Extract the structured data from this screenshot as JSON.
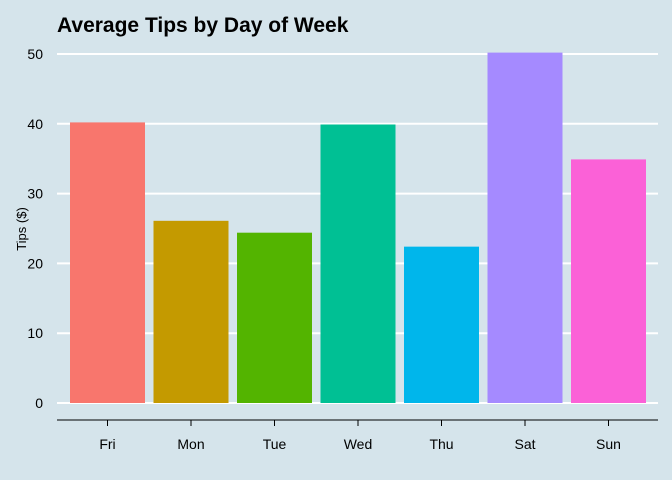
{
  "chart_data": {
    "type": "bar",
    "title": "Average Tips by Day of Week",
    "xlabel": "",
    "ylabel": "Tips ($)",
    "categories": [
      "Fri",
      "Mon",
      "Tue",
      "Wed",
      "Thu",
      "Sat",
      "Sun"
    ],
    "values": [
      40.2,
      26.1,
      24.4,
      39.9,
      22.4,
      50.2,
      34.9
    ],
    "colors": [
      "#f8766d",
      "#c49a00",
      "#53b400",
      "#00c094",
      "#00b6eb",
      "#a58aff",
      "#fb61d7"
    ],
    "ylim": [
      0,
      50
    ],
    "yticks": [
      0,
      10,
      20,
      30,
      40,
      50
    ],
    "grid": true,
    "legend": "none",
    "background": "#d5e4eb",
    "gridline_color": "#ffffff"
  }
}
